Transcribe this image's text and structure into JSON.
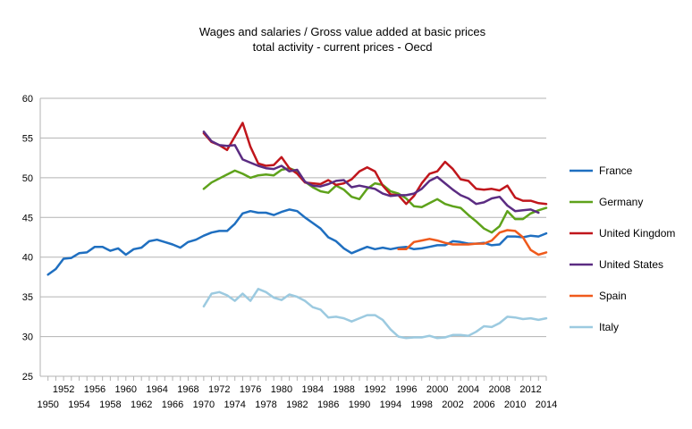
{
  "chart_data": {
    "type": "line",
    "title": "Wages and salaries / Gross value added at basic prices",
    "subtitle": "total activity - current prices - Oecd",
    "xlabel": "",
    "ylabel": "",
    "ylim": [
      25,
      60
    ],
    "y_ticks": [
      25,
      30,
      35,
      40,
      45,
      50,
      55,
      60
    ],
    "xlim": [
      1950,
      2014
    ],
    "x_tick_labels_lower": [
      "1950",
      "1954",
      "1958",
      "1962",
      "1966",
      "1970",
      "1974",
      "1978",
      "1982",
      "1986",
      "1990",
      "1994",
      "1998",
      "2002",
      "2006",
      "2010",
      "2014"
    ],
    "x_tick_labels_upper": [
      "1952",
      "1956",
      "1960",
      "1964",
      "1968",
      "1972",
      "1976",
      "1980",
      "1984",
      "1988",
      "1992",
      "1996",
      "2000",
      "2004",
      "2008",
      "2012"
    ],
    "grid": true,
    "legend_position": "right",
    "series": [
      {
        "name": "France",
        "color": "#1f6fc0",
        "x": [
          1950,
          1951,
          1952,
          1953,
          1954,
          1955,
          1956,
          1957,
          1958,
          1959,
          1960,
          1961,
          1962,
          1963,
          1964,
          1965,
          1966,
          1967,
          1968,
          1969,
          1970,
          1971,
          1972,
          1973,
          1974,
          1975,
          1976,
          1977,
          1978,
          1979,
          1980,
          1981,
          1982,
          1983,
          1984,
          1985,
          1986,
          1987,
          1988,
          1989,
          1990,
          1991,
          1992,
          1993,
          1994,
          1995,
          1996,
          1997,
          1998,
          1999,
          2000,
          2001,
          2002,
          2003,
          2004,
          2005,
          2006,
          2007,
          2008,
          2009,
          2010,
          2011,
          2012,
          2013,
          2014
        ],
        "values": [
          37.8,
          38.5,
          39.8,
          39.9,
          40.5,
          40.6,
          41.3,
          41.3,
          40.8,
          41.1,
          40.3,
          41.0,
          41.2,
          42.0,
          42.2,
          41.9,
          41.6,
          41.2,
          41.9,
          42.2,
          42.7,
          43.1,
          43.3,
          43.3,
          44.2,
          45.5,
          45.8,
          45.6,
          45.6,
          45.3,
          45.7,
          46.0,
          45.8,
          45.0,
          44.3,
          43.6,
          42.5,
          42.0,
          41.1,
          40.5,
          40.9,
          41.3,
          41.0,
          41.2,
          41.0,
          41.2,
          41.3,
          41.0,
          41.1,
          41.3,
          41.5,
          41.5,
          42.0,
          41.9,
          41.7,
          41.7,
          41.8,
          41.5,
          41.6,
          42.6,
          42.6,
          42.5,
          42.7,
          42.6,
          43.0
        ]
      },
      {
        "name": "Germany",
        "color": "#5ea21b",
        "x": [
          1970,
          1971,
          1972,
          1973,
          1974,
          1975,
          1976,
          1977,
          1978,
          1979,
          1980,
          1981,
          1982,
          1983,
          1984,
          1985,
          1986,
          1987,
          1988,
          1989,
          1990,
          1991,
          1992,
          1993,
          1994,
          1995,
          1996,
          1997,
          1998,
          1999,
          2000,
          2001,
          2002,
          2003,
          2004,
          2005,
          2006,
          2007,
          2008,
          2009,
          2010,
          2011,
          2012,
          2013,
          2014
        ],
        "values": [
          48.6,
          49.4,
          49.9,
          50.4,
          50.9,
          50.5,
          50.0,
          50.3,
          50.4,
          50.3,
          51.0,
          51.2,
          50.8,
          49.5,
          48.8,
          48.3,
          48.1,
          49.0,
          48.5,
          47.6,
          47.3,
          48.6,
          49.3,
          49.1,
          48.3,
          48.0,
          47.4,
          46.4,
          46.3,
          46.8,
          47.3,
          46.7,
          46.4,
          46.2,
          45.3,
          44.5,
          43.6,
          43.1,
          43.9,
          45.8,
          44.8,
          44.8,
          45.5,
          45.9,
          46.2
        ]
      },
      {
        "name": "United Kingdom",
        "color": "#c0161c",
        "x": [
          1970,
          1971,
          1972,
          1973,
          1974,
          1975,
          1976,
          1977,
          1978,
          1979,
          1980,
          1981,
          1982,
          1983,
          1984,
          1985,
          1986,
          1987,
          1988,
          1989,
          1990,
          1991,
          1992,
          1993,
          1994,
          1995,
          1996,
          1997,
          1998,
          1999,
          2000,
          2001,
          2002,
          2003,
          2004,
          2005,
          2006,
          2007,
          2008,
          2009,
          2010,
          2011,
          2012,
          2013,
          2014
        ],
        "values": [
          55.6,
          54.5,
          54.1,
          53.5,
          55.2,
          56.9,
          53.9,
          51.8,
          51.5,
          51.6,
          52.6,
          51.2,
          50.5,
          49.4,
          49.3,
          49.2,
          49.7,
          49.1,
          49.3,
          49.8,
          50.8,
          51.3,
          50.8,
          49.0,
          47.9,
          47.8,
          46.7,
          47.7,
          49.3,
          50.5,
          50.8,
          52.0,
          51.1,
          49.8,
          49.6,
          48.6,
          48.5,
          48.6,
          48.4,
          49.0,
          47.5,
          47.1,
          47.1,
          46.8,
          46.7
        ]
      },
      {
        "name": "United States",
        "color": "#5b2c82",
        "x": [
          1970,
          1971,
          1972,
          1973,
          1974,
          1975,
          1976,
          1977,
          1978,
          1979,
          1980,
          1981,
          1982,
          1983,
          1984,
          1985,
          1986,
          1987,
          1988,
          1989,
          1990,
          1991,
          1992,
          1993,
          1994,
          1995,
          1996,
          1997,
          1998,
          1999,
          2000,
          2001,
          2002,
          2003,
          2004,
          2005,
          2006,
          2007,
          2008,
          2009,
          2010,
          2011,
          2012,
          2013
        ],
        "values": [
          55.8,
          54.6,
          54.1,
          54.0,
          54.1,
          52.3,
          51.9,
          51.5,
          51.2,
          51.1,
          51.5,
          50.8,
          51.0,
          49.5,
          49.0,
          48.9,
          49.2,
          49.6,
          49.7,
          48.8,
          49.0,
          48.8,
          48.6,
          48.0,
          47.7,
          47.8,
          47.8,
          48.0,
          48.6,
          49.6,
          50.1,
          49.3,
          48.5,
          47.8,
          47.4,
          46.7,
          46.9,
          47.4,
          47.6,
          46.5,
          45.8,
          45.9,
          46.0,
          45.6
        ]
      },
      {
        "name": "Spain",
        "color": "#ef5a1c",
        "x": [
          1995,
          1996,
          1997,
          1998,
          1999,
          2000,
          2001,
          2002,
          2003,
          2004,
          2005,
          2006,
          2007,
          2008,
          2009,
          2010,
          2011,
          2012,
          2013,
          2014
        ],
        "values": [
          41.0,
          41.0,
          41.9,
          42.1,
          42.3,
          42.1,
          41.8,
          41.6,
          41.6,
          41.6,
          41.7,
          41.7,
          42.1,
          43.1,
          43.4,
          43.3,
          42.5,
          40.9,
          40.3,
          40.6
        ]
      },
      {
        "name": "Italy",
        "color": "#9ccae0",
        "x": [
          1970,
          1971,
          1972,
          1973,
          1974,
          1975,
          1976,
          1977,
          1978,
          1979,
          1980,
          1981,
          1982,
          1983,
          1984,
          1985,
          1986,
          1987,
          1988,
          1989,
          1990,
          1991,
          1992,
          1993,
          1994,
          1995,
          1996,
          1997,
          1998,
          1999,
          2000,
          2001,
          2002,
          2003,
          2004,
          2005,
          2006,
          2007,
          2008,
          2009,
          2010,
          2011,
          2012,
          2013,
          2014
        ],
        "values": [
          33.8,
          35.4,
          35.6,
          35.2,
          34.5,
          35.4,
          34.5,
          36.0,
          35.6,
          34.9,
          34.6,
          35.3,
          35.0,
          34.5,
          33.7,
          33.4,
          32.4,
          32.5,
          32.3,
          31.9,
          32.3,
          32.7,
          32.7,
          32.1,
          30.9,
          30.0,
          29.8,
          29.9,
          29.9,
          30.1,
          29.8,
          29.9,
          30.2,
          30.2,
          30.1,
          30.6,
          31.3,
          31.2,
          31.7,
          32.5,
          32.4,
          32.2,
          32.3,
          32.1,
          32.3
        ]
      }
    ]
  }
}
